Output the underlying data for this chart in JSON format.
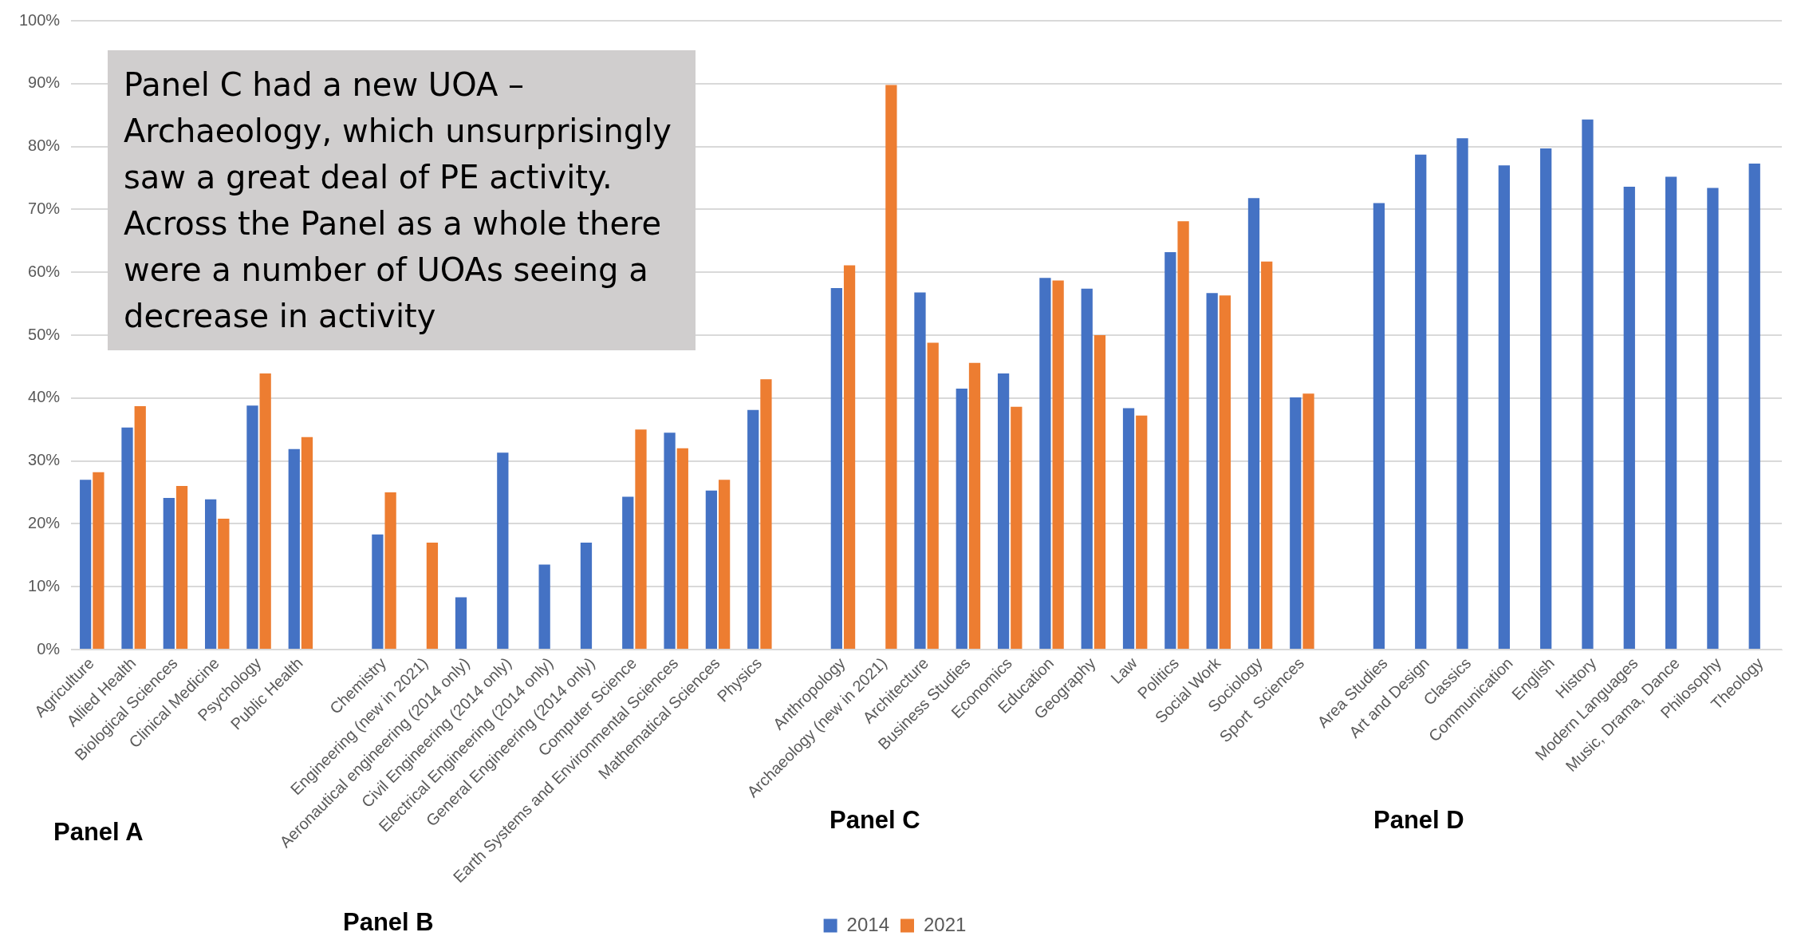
{
  "chart_data": {
    "type": "bar",
    "categories": [
      "Agriculture",
      "Allied Health",
      "Biological Sciences",
      "Clinical Medicine",
      "Psychology",
      "Public Health",
      null,
      "Chemistry",
      "Engineering (new in 2021)",
      "Aeronautical engineering (2014 only)",
      "Civil Engineering (2014 only)",
      "Electrical Engineering (2014 only)",
      "General Engineering (2014 only)",
      "Computer Science",
      "Earth Systems and Environmental Sciences",
      "Mathematical Sciences",
      "Physics",
      null,
      "Anthropology",
      "Archaeology (new in 2021)",
      "Architecture",
      "Business Studies",
      "Economics",
      "Education",
      "Geography",
      "Law",
      "Politics",
      "Social Work",
      "Sociology",
      "Sport  Sciences",
      null,
      "Area Studies",
      "Art and Design",
      "Classics",
      "Communication",
      "English",
      "History",
      "Modern Languages",
      "Music, Drama, Dance",
      "Philosophy",
      "Theology"
    ],
    "series": [
      {
        "name": "2014",
        "color": "#4472c4",
        "values": [
          27.0,
          35.3,
          24.1,
          23.9,
          38.8,
          31.9,
          null,
          18.3,
          null,
          8.3,
          31.3,
          13.5,
          17.0,
          24.3,
          34.5,
          25.3,
          38.1,
          null,
          57.5,
          null,
          56.8,
          41.5,
          43.9,
          59.1,
          57.4,
          38.4,
          63.2,
          56.7,
          71.8,
          40.1,
          null,
          71.0,
          78.7,
          81.3,
          77.0,
          79.7,
          84.3,
          73.6,
          75.2,
          73.4,
          77.3
        ]
      },
      {
        "name": "2021",
        "color": "#ed7d31",
        "values": [
          28.2,
          38.7,
          26.0,
          20.8,
          43.9,
          33.8,
          null,
          25.0,
          17.0,
          null,
          null,
          null,
          null,
          35.0,
          32.0,
          27.0,
          43.0,
          null,
          61.1,
          89.8,
          48.8,
          45.6,
          38.6,
          58.7,
          50.0,
          37.2,
          68.1,
          56.3,
          61.7,
          40.7,
          null,
          null,
          null,
          null,
          null,
          null,
          null,
          null,
          null,
          null,
          null
        ]
      }
    ],
    "ylim": [
      0,
      100
    ],
    "yticks": [
      {
        "value": 0,
        "label": "0%"
      },
      {
        "value": 10,
        "label": "10%"
      },
      {
        "value": 20,
        "label": "20%"
      },
      {
        "value": 30,
        "label": "30%"
      },
      {
        "value": 40,
        "label": "40%"
      },
      {
        "value": 50,
        "label": "50%"
      },
      {
        "value": 60,
        "label": "60%"
      },
      {
        "value": 70,
        "label": "70%"
      },
      {
        "value": 80,
        "label": "80%"
      },
      {
        "value": 90,
        "label": "90%"
      },
      {
        "value": 100,
        "label": "100%"
      }
    ],
    "grid": "y",
    "legend": "bottom",
    "annotations": [
      "Panel C had a new UOA – Archaeology, which unsurprisingly saw a great deal of PE activity. Across the Panel as a whole there were a number of UOAs seeing a decrease in activity",
      "Panel A",
      "Panel B",
      "Panel C",
      "Panel D"
    ]
  }
}
